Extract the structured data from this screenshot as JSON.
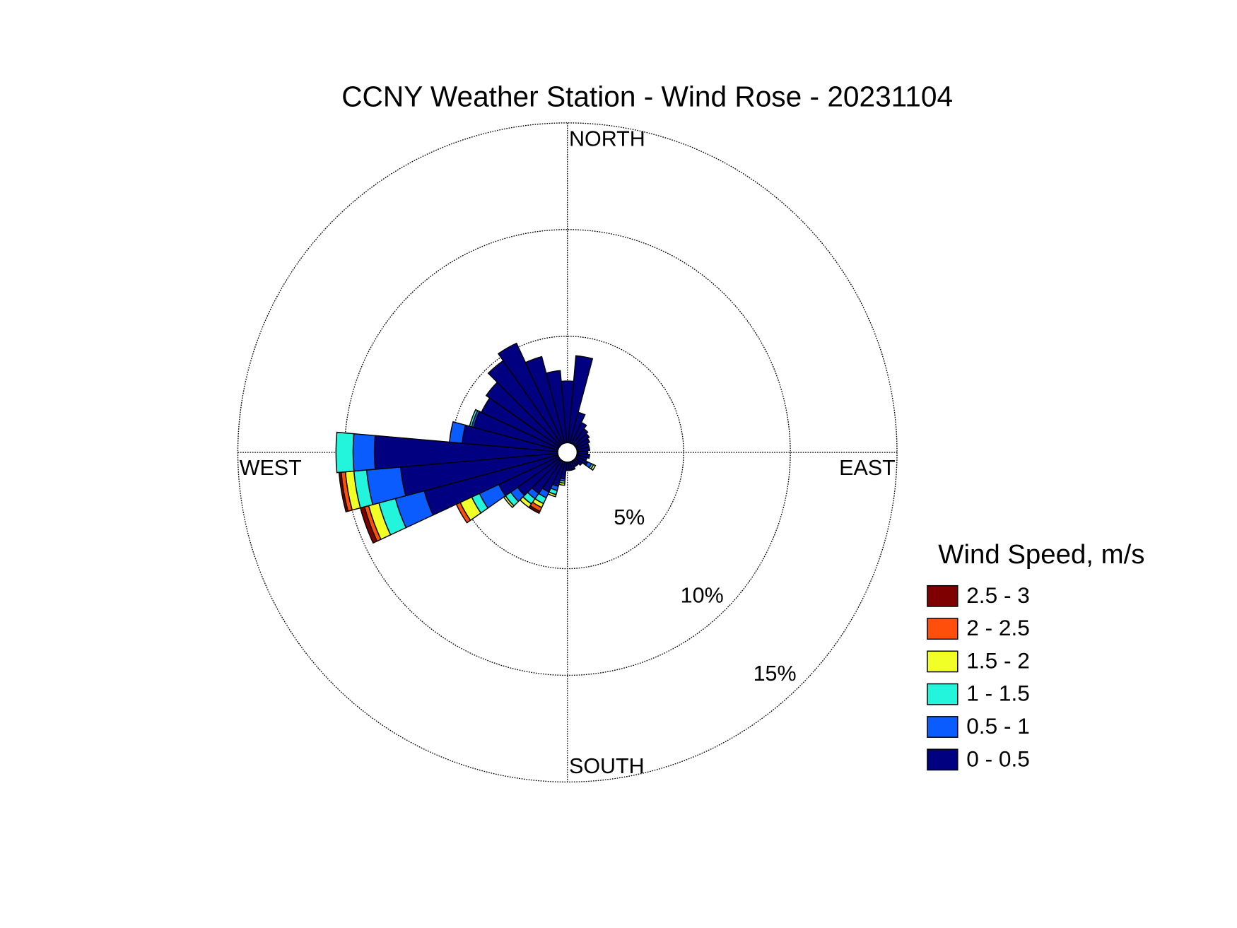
{
  "chart_data": {
    "type": "windrose",
    "title": "CCNY Weather Station - Wind Rose - 20231104",
    "legend_title": "Wind Speed, m/s",
    "direction_labels": [
      "NORTH",
      "EAST",
      "SOUTH",
      "WEST"
    ],
    "categories": [
      null,
      null,
      null,
      null,
      null,
      null,
      null,
      null,
      null,
      null,
      null,
      null,
      null,
      null,
      null,
      null,
      null,
      null,
      null,
      null,
      null,
      null,
      null,
      null,
      null,
      null,
      null,
      null,
      null,
      null,
      null,
      null,
      null,
      null,
      null,
      null
    ],
    "rlim": [
      0,
      15
    ],
    "rticks": [
      {
        "value": 5,
        "label": "5%"
      },
      {
        "value": 10,
        "label": "10%"
      },
      {
        "value": 15,
        "label": "15%"
      }
    ],
    "grid": true,
    "series": [
      {
        "name": "0 - 0.5",
        "color": "#000080",
        "values": [
          2.9,
          4.1,
          1.5,
          1.1,
          0.9,
          0.8,
          0.7,
          0.6,
          0.6,
          0.5,
          0.6,
          0.5,
          0.6,
          0.4,
          0.3,
          0.3,
          0.4,
          0.4,
          0.4,
          0.8,
          1.2,
          1.6,
          1.9,
          2.4,
          3.1,
          6.5,
          7.4,
          8.6,
          4.5,
          4.1,
          4.0,
          4.2,
          4.8,
          5.2,
          4.2,
          3.4
        ]
      },
      {
        "name": "0.5 - 1",
        "color": "#0a5cff",
        "values": [
          0,
          0,
          0,
          0,
          0,
          0,
          0,
          0,
          0,
          0,
          0,
          0,
          0.2,
          0,
          0,
          0,
          0,
          0,
          0,
          0.1,
          0.2,
          0.3,
          0.3,
          0.4,
          1.0,
          1.4,
          1.6,
          1.0,
          0.6,
          0.1,
          0,
          0,
          0,
          0,
          0,
          0
        ]
      },
      {
        "name": "1 - 1.5",
        "color": "#22f5dc",
        "values": [
          0,
          0,
          0,
          0,
          0,
          0,
          0,
          0,
          0,
          0,
          0,
          0,
          0.1,
          0,
          0,
          0,
          0,
          0,
          0,
          0.1,
          0.2,
          0.3,
          0.3,
          0.3,
          0.4,
          0.8,
          0.6,
          0.8,
          0,
          0.1,
          0,
          0,
          0,
          0,
          0,
          0
        ]
      },
      {
        "name": "1.5 - 2",
        "color": "#f2ff26",
        "values": [
          0,
          0,
          0,
          0,
          0,
          0,
          0,
          0,
          0,
          0,
          0,
          0,
          0.1,
          0,
          0,
          0,
          0,
          0,
          0,
          0.1,
          0.1,
          0.2,
          0.2,
          0.1,
          0.6,
          0.5,
          0.4,
          0,
          0,
          0,
          0,
          0,
          0,
          0,
          0,
          0
        ]
      },
      {
        "name": "2 - 2.5",
        "color": "#ff4f0a",
        "values": [
          0,
          0,
          0,
          0,
          0,
          0,
          0,
          0,
          0,
          0,
          0,
          0,
          0,
          0,
          0,
          0,
          0,
          0,
          0,
          0,
          0,
          0.2,
          0,
          0,
          0.2,
          0.2,
          0.2,
          0,
          0,
          0,
          0,
          0,
          0,
          0,
          0,
          0
        ]
      },
      {
        "name": "2.5 - 3",
        "color": "#7f0000",
        "values": [
          0,
          0,
          0,
          0,
          0,
          0,
          0,
          0,
          0,
          0,
          0,
          0,
          0,
          0,
          0,
          0,
          0,
          0,
          0,
          0,
          0,
          0.1,
          0,
          0,
          0,
          0.2,
          0.1,
          0,
          0,
          0,
          0,
          0,
          0,
          0,
          0,
          0
        ]
      }
    ]
  }
}
